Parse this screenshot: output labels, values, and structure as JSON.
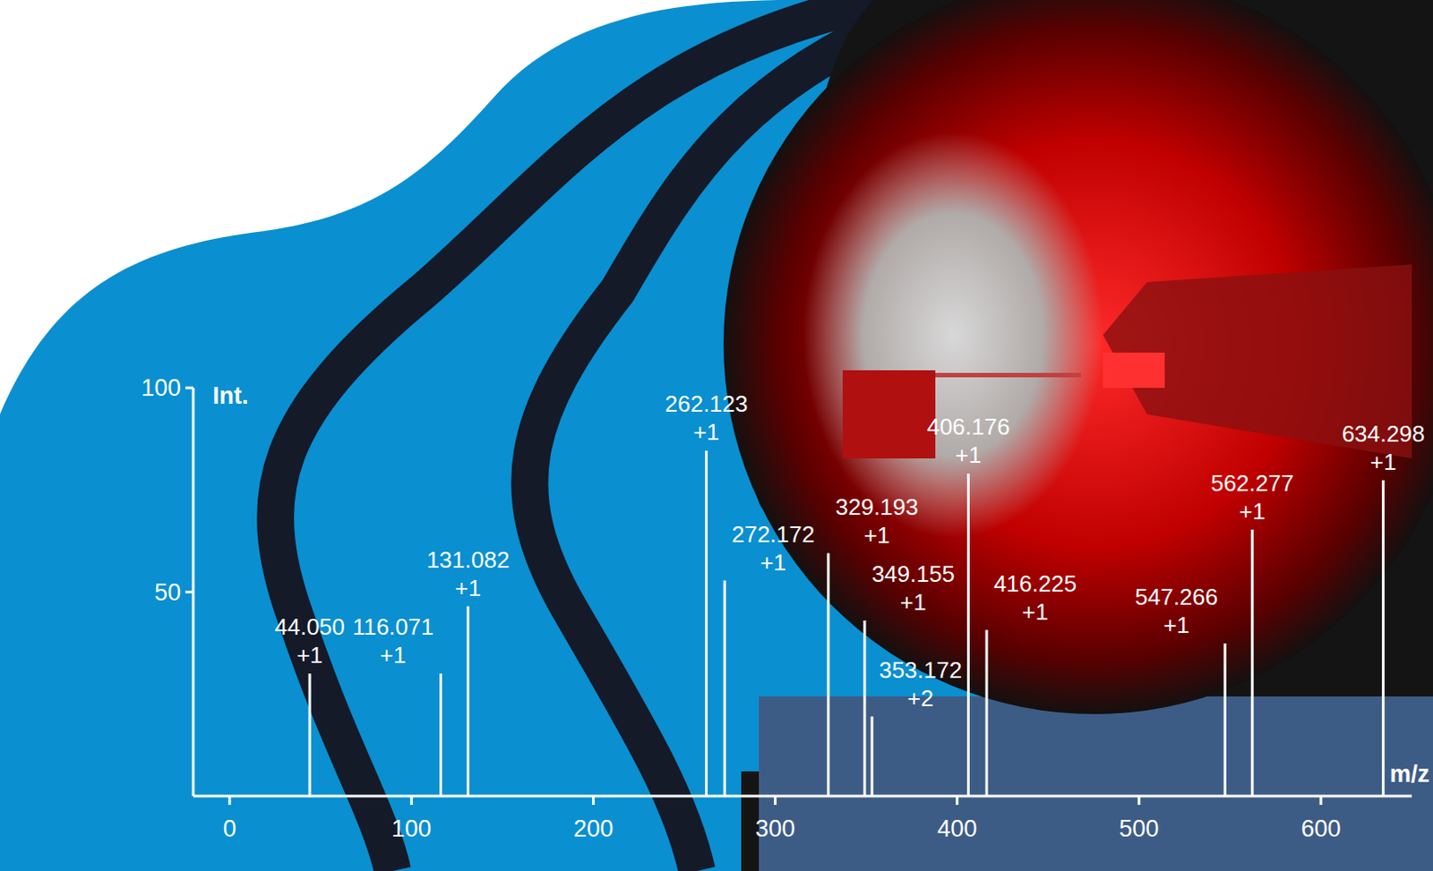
{
  "chart_data": {
    "type": "stick",
    "x_label": "m/z",
    "y_label": "Int.",
    "x": [
      44.05,
      116.071,
      131.082,
      262.123,
      272.172,
      329.193,
      349.155,
      353.172,
      406.176,
      416.225,
      547.266,
      562.277,
      634.298
    ],
    "x_labels": [
      "44.050",
      "116.071",
      "131.082",
      "262.123",
      "272.172",
      "329.193",
      "349.155",
      "353.172",
      "406.176",
      "416.225",
      "547.266",
      "562.277",
      "634.298"
    ],
    "charges": [
      "+1",
      "+1",
      "+1",
      "+1",
      "+1",
      "+1",
      "+1",
      "+2",
      "+1",
      "+1",
      "+1",
      "+1",
      "+1"
    ],
    "values": [
      30,
      30,
      46.5,
      84.6,
      52.8,
      59.5,
      43,
      19.5,
      79,
      40.7,
      37.4,
      65.3,
      77.4
    ],
    "color": "#ffffff",
    "xlim": [
      -20,
      650
    ],
    "xticks": [
      0,
      100,
      200,
      300,
      400,
      500,
      600
    ],
    "ylim": [
      0,
      100
    ],
    "yticks": [
      50,
      100
    ]
  }
}
